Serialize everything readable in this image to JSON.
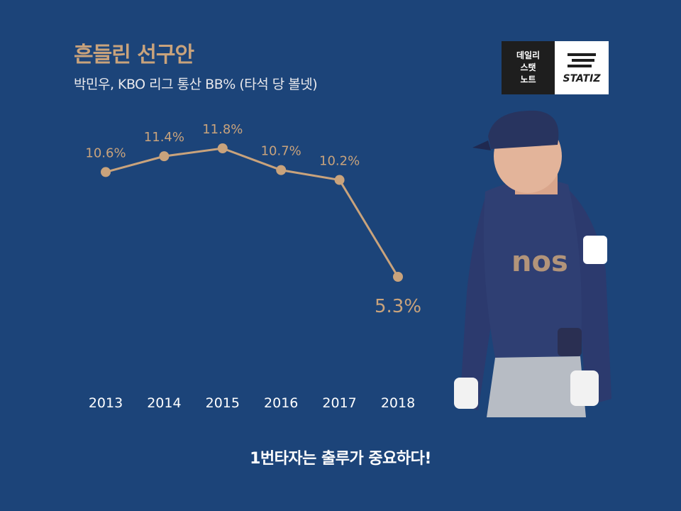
{
  "title": "흔들린 선구안",
  "subtitle": "박민우, KBO 리그 통산 BB% (타석 당 볼넷)",
  "logo": {
    "line1": "데일리",
    "line2": "스탯",
    "line3": "노트",
    "brand": "STATIZ"
  },
  "footer": "1번타자는 출루가 중요하다!",
  "colors": {
    "background": "#1c4479",
    "accent": "#c9a37c",
    "text": "#ffffff"
  },
  "chart_data": {
    "type": "line",
    "categories": [
      "2013",
      "2014",
      "2015",
      "2016",
      "2017",
      "2018"
    ],
    "values": [
      10.6,
      11.4,
      11.8,
      10.7,
      10.2,
      5.3
    ],
    "labels": [
      "10.6%",
      "11.4%",
      "11.8%",
      "10.7%",
      "10.2%",
      "5.3%"
    ],
    "title": "흔들린 선구안",
    "ylabel": "BB%",
    "ylim": [
      5.3,
      11.8
    ],
    "grid": false
  }
}
